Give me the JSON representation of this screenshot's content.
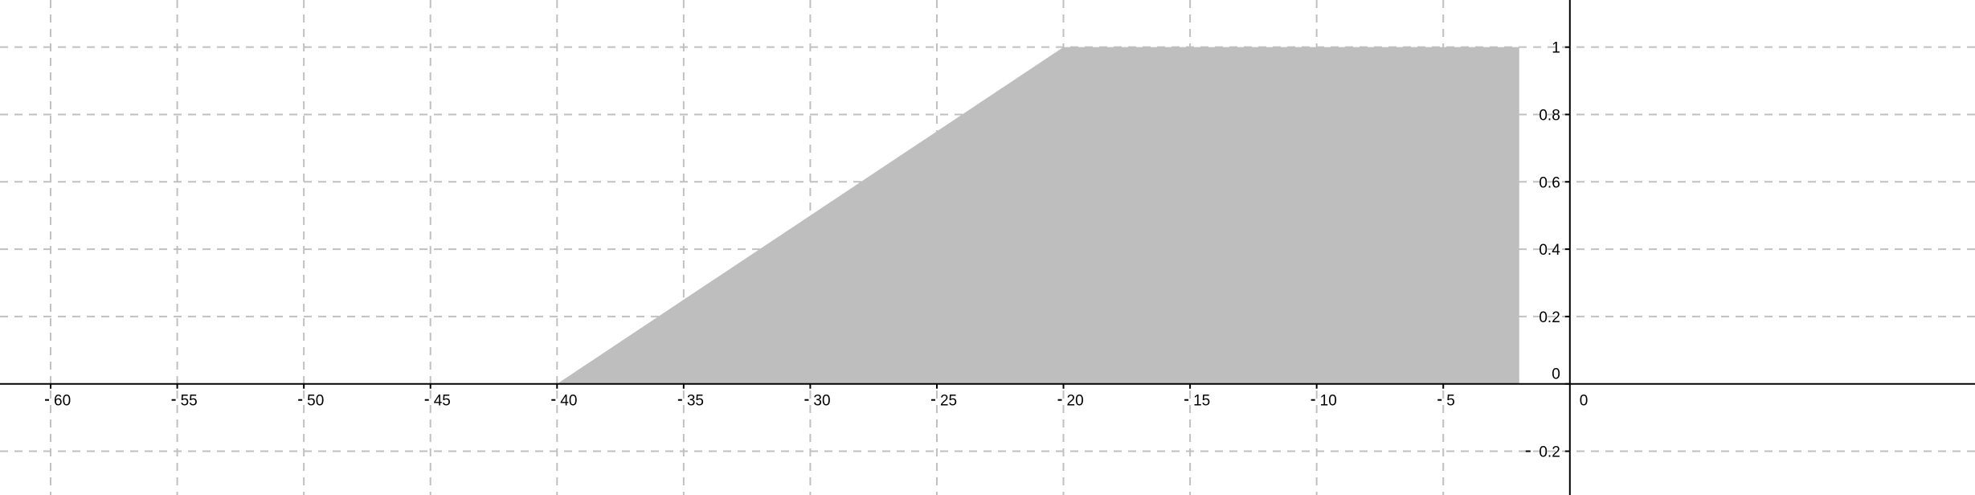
{
  "chart_data": {
    "type": "area",
    "x": [
      -40,
      -20,
      -2
    ],
    "y": [
      0,
      1,
      1
    ],
    "xlim": [
      -62,
      16
    ],
    "ylim": [
      -0.33,
      1.14
    ],
    "x_ticks": [
      -60,
      -55,
      -50,
      -45,
      -40,
      -35,
      -30,
      -25,
      -20,
      -15,
      -10,
      -5
    ],
    "y_ticks": [
      -0.2,
      0,
      0.2,
      0.4,
      0.6,
      0.8,
      1
    ],
    "x_tick_labels": [
      "60",
      "55",
      "50",
      "45",
      "40",
      "35",
      "30",
      "25",
      "20",
      "15",
      "10",
      "5"
    ],
    "y_tick_labels": [
      "0.2",
      "0",
      "0.2",
      "0.4",
      "0.6",
      "0.8",
      "1"
    ],
    "origin_label": "0",
    "grid": true,
    "fill_color": "#bebebe",
    "grid_color": "#c0c0c0",
    "axis_color": "#000000"
  }
}
